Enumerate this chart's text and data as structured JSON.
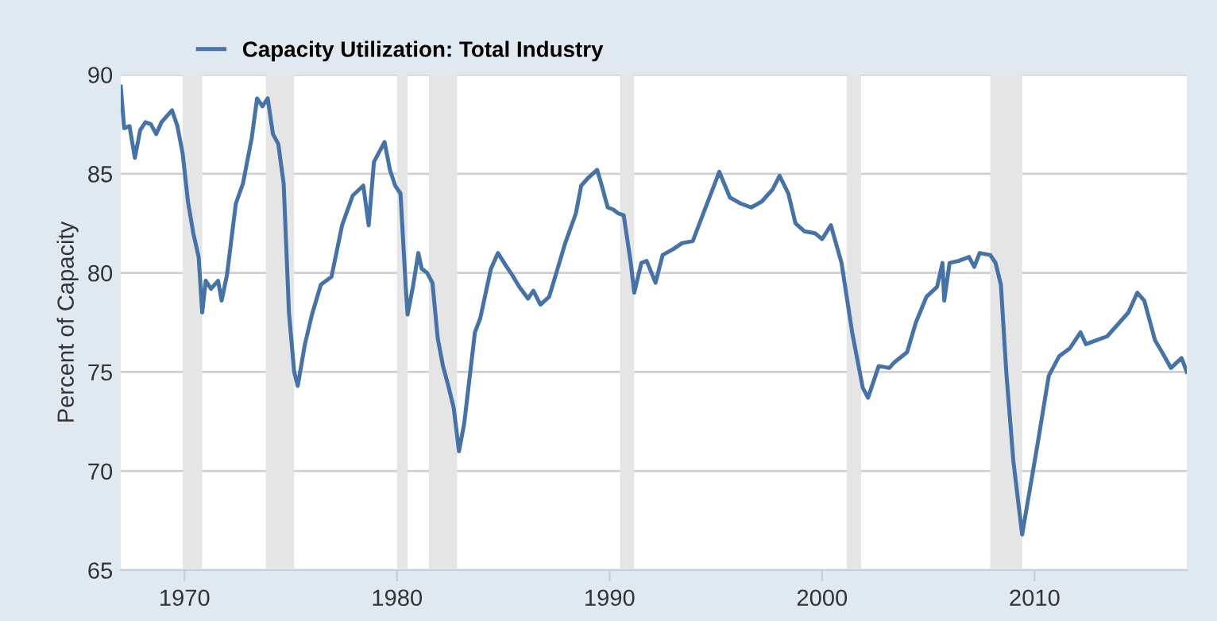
{
  "chart_data": {
    "type": "line",
    "ylabel": "Percent of Capacity",
    "legend": "top left",
    "x": [
      "1967-01",
      "1967-03",
      "1967-06",
      "1967-09",
      "1967-12",
      "1968-03",
      "1968-06",
      "1968-09",
      "1968-12",
      "1969-03",
      "1969-06",
      "1969-09",
      "1969-12",
      "1970-03",
      "1970-06",
      "1970-09",
      "1970-11",
      "1971-01",
      "1971-04",
      "1971-08",
      "1971-10",
      "1972-01",
      "1972-06",
      "1972-10",
      "1973-03",
      "1973-06",
      "1973-09",
      "1973-12",
      "1974-03",
      "1974-06",
      "1974-09",
      "1974-12",
      "1975-03",
      "1975-05",
      "1975-09",
      "1976-01",
      "1976-06",
      "1976-12",
      "1977-06",
      "1977-12",
      "1978-06",
      "1978-09",
      "1978-12",
      "1979-03",
      "1979-06",
      "1979-09",
      "1979-12",
      "1980-03",
      "1980-06",
      "1980-07",
      "1980-10",
      "1981-01",
      "1981-03",
      "1981-06",
      "1981-09",
      "1981-12",
      "1982-03",
      "1982-06",
      "1982-09",
      "1982-12",
      "1983-03",
      "1983-06",
      "1983-09",
      "1983-12",
      "1984-06",
      "1984-10",
      "1985-03",
      "1985-06",
      "1985-10",
      "1986-03",
      "1986-06",
      "1986-10",
      "1987-03",
      "1987-06",
      "1987-12",
      "1988-06",
      "1988-09",
      "1989-01",
      "1989-06",
      "1989-08",
      "1989-12",
      "1990-03",
      "1990-06",
      "1990-09",
      "1991-01",
      "1991-03",
      "1991-07",
      "1991-10",
      "1992-03",
      "1992-07",
      "1993-01",
      "1993-06",
      "1993-12",
      "1994-06",
      "1994-12",
      "1995-03",
      "1995-09",
      "1996-03",
      "1996-09",
      "1997-03",
      "1997-09",
      "1998-01",
      "1998-06",
      "1998-10",
      "1999-03",
      "1999-09",
      "2000-01",
      "2000-06",
      "2000-12",
      "2001-06",
      "2001-12",
      "2002-03",
      "2002-09",
      "2003-03",
      "2003-06",
      "2004-01",
      "2004-06",
      "2004-12",
      "2005-06",
      "2005-09",
      "2005-10",
      "2006-01",
      "2006-06",
      "2006-12",
      "2007-03",
      "2007-06",
      "2007-12",
      "2008-03",
      "2008-06",
      "2008-09",
      "2009-01",
      "2009-06",
      "2009-10",
      "2010-03",
      "2010-09",
      "2011-03",
      "2011-09",
      "2012-03",
      "2012-06",
      "2012-12",
      "2013-06",
      "2013-12",
      "2014-06",
      "2014-11",
      "2015-03",
      "2015-09",
      "2016-01",
      "2016-06",
      "2016-12",
      "2017-03"
    ],
    "series": [
      {
        "name": "Capacity Utilization: Total Industry",
        "color": "#4572a7",
        "values": [
          89.4,
          87.3,
          87.4,
          85.8,
          87.2,
          87.6,
          87.5,
          87.0,
          87.6,
          87.9,
          88.2,
          87.4,
          86.0,
          83.6,
          82.0,
          80.8,
          78.0,
          79.6,
          79.2,
          79.6,
          78.6,
          79.9,
          83.5,
          84.5,
          86.8,
          88.8,
          88.4,
          88.8,
          87.0,
          86.5,
          84.5,
          78.0,
          75.0,
          74.3,
          76.4,
          77.9,
          79.4,
          79.8,
          82.4,
          83.9,
          84.4,
          82.4,
          85.6,
          86.1,
          86.6,
          85.2,
          84.4,
          84.0,
          79.2,
          77.9,
          79.3,
          81.0,
          80.2,
          80.0,
          79.5,
          76.7,
          75.3,
          74.3,
          73.2,
          71.0,
          72.4,
          74.7,
          77.0,
          77.7,
          80.2,
          81.0,
          80.3,
          79.9,
          79.3,
          78.7,
          79.1,
          78.4,
          78.8,
          79.7,
          81.5,
          83.0,
          84.4,
          84.8,
          85.2,
          84.6,
          83.3,
          83.2,
          83.0,
          82.9,
          80.5,
          79.0,
          80.5,
          80.6,
          79.5,
          80.9,
          81.2,
          81.5,
          81.6,
          83.0,
          84.4,
          85.1,
          83.8,
          83.5,
          83.3,
          83.6,
          84.2,
          84.9,
          84.0,
          82.5,
          82.1,
          82.0,
          81.7,
          82.4,
          80.5,
          77.0,
          74.2,
          73.7,
          75.3,
          75.2,
          75.5,
          76.0,
          77.5,
          78.8,
          79.3,
          80.5,
          78.6,
          80.5,
          80.6,
          80.8,
          80.3,
          81.0,
          80.9,
          80.5,
          79.4,
          75.0,
          70.5,
          66.8,
          68.9,
          71.5,
          74.8,
          75.8,
          76.2,
          77.0,
          76.4,
          76.6,
          76.8,
          77.4,
          78.0,
          79.0,
          78.6,
          76.6,
          76.0,
          75.2,
          75.7,
          75.0
        ]
      }
    ],
    "xlim": [
      "1967-01",
      "2017-03"
    ],
    "xticks": [
      "1970",
      "1980",
      "1990",
      "2000",
      "2010"
    ],
    "ylim": [
      65,
      90
    ],
    "yticks": [
      65,
      70,
      75,
      80,
      85,
      90
    ],
    "grid": "y",
    "bands": [
      {
        "axis": "x",
        "from": "1969-12",
        "to": "1970-11",
        "color": "#e5e5e5"
      },
      {
        "axis": "x",
        "from": "1973-11",
        "to": "1975-03",
        "color": "#e5e5e5"
      },
      {
        "axis": "x",
        "from": "1980-01",
        "to": "1980-07",
        "color": "#e5e5e5"
      },
      {
        "axis": "x",
        "from": "1981-07",
        "to": "1982-11",
        "color": "#e5e5e5"
      },
      {
        "axis": "x",
        "from": "1990-07",
        "to": "1991-03",
        "color": "#e5e5e5"
      },
      {
        "axis": "x",
        "from": "2001-03",
        "to": "2001-11",
        "color": "#e5e5e5"
      },
      {
        "axis": "x",
        "from": "2007-12",
        "to": "2009-06",
        "color": "#e5e5e5"
      }
    ]
  }
}
